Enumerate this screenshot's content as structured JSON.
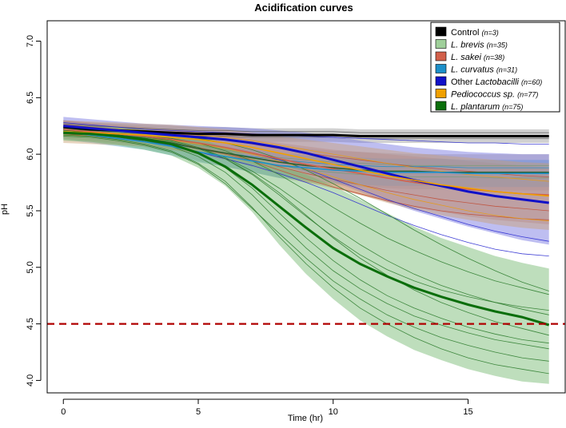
{
  "chart_data": {
    "type": "line",
    "title": "Acidification curves",
    "xlabel": "Time (hr)",
    "ylabel": "pH",
    "xlim": [
      -0.6,
      18.6
    ],
    "ylim": [
      3.89,
      7.18
    ],
    "x_ticks": [
      0,
      5,
      10,
      15
    ],
    "x_tick_labels": [
      "0",
      "5",
      "10",
      "15"
    ],
    "y_ticks": [
      4.0,
      4.5,
      5.0,
      5.5,
      6.0,
      6.5,
      7.0
    ],
    "y_tick_labels": [
      "4.0",
      "4.5",
      "5.0",
      "5.5",
      "6.0",
      "6.5",
      "7.0"
    ],
    "x": [
      0,
      1,
      2,
      3,
      4,
      5,
      6,
      7,
      8,
      9,
      10,
      11,
      12,
      13,
      14,
      15,
      16,
      17,
      18
    ],
    "threshold": {
      "y": 4.5,
      "color": "#b00000",
      "style": "dashed"
    },
    "legend_position": "top-right",
    "series": [
      {
        "name": "Control",
        "italic": false,
        "n_label": "(n=3)",
        "color": "#000000",
        "band_color": "#9a9a9a",
        "line_color": "#606060",
        "mean": [
          6.24,
          6.22,
          6.21,
          6.2,
          6.19,
          6.18,
          6.18,
          6.17,
          6.17,
          6.17,
          6.17,
          6.16,
          6.16,
          6.16,
          6.16,
          6.16,
          6.16,
          6.16,
          6.16
        ],
        "upper": [
          6.3,
          6.28,
          6.27,
          6.26,
          6.25,
          6.24,
          6.24,
          6.23,
          6.23,
          6.23,
          6.23,
          6.22,
          6.22,
          6.22,
          6.22,
          6.22,
          6.22,
          6.22,
          6.22
        ],
        "lower": [
          6.18,
          6.16,
          6.15,
          6.14,
          6.13,
          6.12,
          6.12,
          6.11,
          6.11,
          6.11,
          6.11,
          6.1,
          6.1,
          6.1,
          6.1,
          6.1,
          6.1,
          6.1,
          6.1
        ],
        "individual": [
          [
            6.27,
            6.25,
            6.24,
            6.23,
            6.22,
            6.21,
            6.21,
            6.2,
            6.2,
            6.2,
            6.2,
            6.19,
            6.19,
            6.19,
            6.19,
            6.19,
            6.19,
            6.19,
            6.19
          ],
          [
            6.22,
            6.2,
            6.19,
            6.18,
            6.17,
            6.16,
            6.16,
            6.15,
            6.15,
            6.15,
            6.15,
            6.14,
            6.14,
            6.14,
            6.14,
            6.14,
            6.14,
            6.14,
            6.14
          ]
        ]
      },
      {
        "name": "L. brevis",
        "italic": true,
        "n_label": "(n=35)",
        "color": "#9fcf9a",
        "band_color": "#b9a898",
        "line_color": "#7a9a74",
        "mean": [
          6.22,
          6.19,
          6.17,
          6.14,
          6.1,
          6.05,
          6.01,
          5.97,
          5.93,
          5.9,
          5.88,
          5.86,
          5.85,
          5.85,
          5.84,
          5.84,
          5.84,
          5.84,
          5.84
        ],
        "upper": [
          6.3,
          6.27,
          6.25,
          6.22,
          6.19,
          6.16,
          6.13,
          6.1,
          6.07,
          6.05,
          6.03,
          6.02,
          6.01,
          6.0,
          6.0,
          6.0,
          6.0,
          6.0,
          6.0
        ],
        "lower": [
          6.14,
          6.11,
          6.09,
          6.06,
          6.01,
          5.94,
          5.89,
          5.84,
          5.79,
          5.75,
          5.73,
          5.71,
          5.7,
          5.69,
          5.69,
          5.69,
          5.68,
          5.68,
          5.68
        ],
        "individual": [
          [
            6.24,
            6.21,
            6.19,
            6.16,
            6.12,
            6.08,
            6.04,
            6.0,
            5.97,
            5.95,
            5.93,
            5.92,
            5.91,
            5.9,
            5.9,
            5.9,
            5.9,
            5.9,
            5.9
          ],
          [
            6.2,
            6.17,
            6.15,
            6.12,
            6.08,
            6.02,
            5.98,
            5.94,
            5.9,
            5.86,
            5.84,
            5.82,
            5.81,
            5.8,
            5.8,
            5.8,
            5.79,
            5.79,
            5.79
          ]
        ]
      },
      {
        "name": "L. sakei",
        "italic": true,
        "n_label": "(n=38)",
        "color": "#d2604a",
        "band_color": "#d8896f",
        "line_color": "#c0503a",
        "mean": [
          6.22,
          6.2,
          6.18,
          6.16,
          6.13,
          6.1,
          6.06,
          6.01,
          5.96,
          5.91,
          5.87,
          5.83,
          5.79,
          5.75,
          5.72,
          5.69,
          5.67,
          5.65,
          5.64
        ],
        "upper": [
          6.3,
          6.28,
          6.26,
          6.24,
          6.22,
          6.2,
          6.17,
          6.13,
          6.1,
          6.07,
          6.04,
          6.02,
          6.0,
          5.98,
          5.96,
          5.94,
          5.92,
          5.9,
          5.88
        ],
        "lower": [
          6.14,
          6.12,
          6.1,
          6.08,
          6.04,
          6.0,
          5.95,
          5.89,
          5.82,
          5.75,
          5.7,
          5.64,
          5.58,
          5.53,
          5.49,
          5.45,
          5.42,
          5.4,
          5.38
        ],
        "individual": [
          [
            6.26,
            6.24,
            6.22,
            6.2,
            6.18,
            6.16,
            6.13,
            6.09,
            6.05,
            6.01,
            5.98,
            5.95,
            5.92,
            5.89,
            5.87,
            5.85,
            5.83,
            5.81,
            5.8
          ],
          [
            6.2,
            6.18,
            6.16,
            6.13,
            6.1,
            6.06,
            6.01,
            5.95,
            5.89,
            5.83,
            5.78,
            5.73,
            5.68,
            5.64,
            5.6,
            5.57,
            5.54,
            5.52,
            5.5
          ],
          [
            6.18,
            6.16,
            6.14,
            6.12,
            6.09,
            6.05,
            6.0,
            5.94,
            5.86,
            5.78,
            5.71,
            5.65,
            5.59,
            5.54,
            5.5,
            5.47,
            5.45,
            5.43,
            5.42
          ]
        ]
      },
      {
        "name": "L. curvatus",
        "italic": true,
        "n_label": "(n=31)",
        "color": "#1c8fc9",
        "band_color": "#5aa9cf",
        "line_color": "#1c8fc9",
        "mean": [
          6.2,
          6.17,
          6.14,
          6.11,
          6.07,
          6.02,
          5.98,
          5.94,
          5.9,
          5.88,
          5.86,
          5.85,
          5.84,
          5.84,
          5.84,
          5.83,
          5.83,
          5.83,
          5.83
        ],
        "upper": [
          6.27,
          6.24,
          6.21,
          6.18,
          6.15,
          6.11,
          6.07,
          6.04,
          6.01,
          5.99,
          5.98,
          5.97,
          5.96,
          5.96,
          5.96,
          5.95,
          5.95,
          5.95,
          5.95
        ],
        "lower": [
          6.13,
          6.1,
          6.07,
          6.04,
          5.99,
          5.93,
          5.89,
          5.84,
          5.79,
          5.77,
          5.74,
          5.73,
          5.72,
          5.72,
          5.72,
          5.71,
          5.71,
          5.71,
          5.71
        ],
        "individual": [
          [
            6.22,
            6.19,
            6.16,
            6.13,
            6.09,
            6.05,
            6.01,
            5.98,
            5.95,
            5.93,
            5.91,
            5.9,
            5.89,
            5.89,
            5.89,
            5.88,
            5.88,
            5.88,
            5.88
          ]
        ]
      },
      {
        "name": "Other Lactobacilli",
        "name_prefix": "Other ",
        "name_italic_part": "Lactobacilli",
        "italic": false,
        "n_label": "(n=60)",
        "color": "#1010c8",
        "band_color": "#6f6fe0",
        "line_color": "#2a2ad0",
        "mean": [
          6.25,
          6.23,
          6.21,
          6.19,
          6.17,
          6.15,
          6.13,
          6.1,
          6.06,
          6.01,
          5.95,
          5.89,
          5.83,
          5.77,
          5.72,
          5.67,
          5.63,
          5.6,
          5.57
        ],
        "upper": [
          6.33,
          6.31,
          6.29,
          6.27,
          6.26,
          6.25,
          6.24,
          6.23,
          6.21,
          6.19,
          6.16,
          6.12,
          6.09,
          6.06,
          6.04,
          6.02,
          6.01,
          6.0,
          6.0
        ],
        "lower": [
          6.17,
          6.15,
          6.13,
          6.11,
          6.08,
          6.05,
          6.02,
          5.97,
          5.91,
          5.84,
          5.76,
          5.67,
          5.58,
          5.5,
          5.43,
          5.36,
          5.3,
          5.24,
          5.2
        ],
        "individual": [
          [
            6.28,
            6.26,
            6.24,
            6.22,
            6.21,
            6.2,
            6.19,
            6.18,
            6.17,
            6.16,
            6.15,
            6.14,
            6.13,
            6.12,
            6.11,
            6.1,
            6.1,
            6.09,
            6.09
          ],
          [
            6.22,
            6.2,
            6.18,
            6.16,
            6.13,
            6.1,
            6.06,
            6.01,
            5.95,
            5.87,
            5.78,
            5.69,
            5.6,
            5.52,
            5.45,
            5.38,
            5.32,
            5.27,
            5.23
          ],
          [
            6.2,
            6.18,
            6.15,
            6.12,
            6.08,
            6.02,
            5.96,
            5.9,
            5.83,
            5.75,
            5.66,
            5.56,
            5.46,
            5.37,
            5.29,
            5.22,
            5.16,
            5.12,
            5.1
          ]
        ]
      },
      {
        "name": "Pediococcus sp.",
        "italic": true,
        "n_label": "(n=77)",
        "color": "#f0a000",
        "band_color": "#c9a070",
        "line_color": "#e89a10",
        "mean": [
          6.2,
          6.19,
          6.18,
          6.17,
          6.15,
          6.13,
          6.1,
          6.06,
          6.01,
          5.96,
          5.91,
          5.86,
          5.81,
          5.77,
          5.73,
          5.7,
          5.67,
          5.65,
          5.63
        ],
        "upper": [
          6.3,
          6.29,
          6.28,
          6.27,
          6.26,
          6.24,
          6.22,
          6.19,
          6.16,
          6.13,
          6.1,
          6.07,
          6.04,
          6.01,
          5.99,
          5.97,
          5.95,
          5.93,
          5.92
        ],
        "lower": [
          6.1,
          6.09,
          6.08,
          6.07,
          6.04,
          6.01,
          5.97,
          5.92,
          5.85,
          5.78,
          5.71,
          5.64,
          5.57,
          5.51,
          5.46,
          5.42,
          5.38,
          5.35,
          5.33
        ],
        "individual": [
          [
            6.24,
            6.23,
            6.22,
            6.21,
            6.19,
            6.17,
            6.15,
            6.12,
            6.08,
            6.04,
            6.0,
            5.96,
            5.92,
            5.88,
            5.85,
            5.82,
            5.8,
            5.78,
            5.76
          ],
          [
            6.17,
            6.16,
            6.15,
            6.14,
            6.12,
            6.09,
            6.05,
            6.0,
            5.94,
            5.87,
            5.8,
            5.73,
            5.66,
            5.6,
            5.55,
            5.5,
            5.46,
            5.43,
            5.41
          ]
        ]
      },
      {
        "name": "L. plantarum",
        "italic": true,
        "n_label": "(n=75)",
        "color": "#0a6e0a",
        "band_color": "#6fb56a",
        "line_color": "#2f7d2f",
        "mean": [
          6.19,
          6.18,
          6.16,
          6.13,
          6.09,
          6.01,
          5.89,
          5.73,
          5.54,
          5.35,
          5.17,
          5.03,
          4.92,
          4.82,
          4.74,
          4.67,
          4.61,
          4.56,
          4.49
        ],
        "upper": [
          6.26,
          6.25,
          6.24,
          6.22,
          6.19,
          6.14,
          6.06,
          5.97,
          5.9,
          5.82,
          5.72,
          5.6,
          5.48,
          5.36,
          5.26,
          5.18,
          5.1,
          5.04,
          4.99
        ],
        "lower": [
          6.12,
          6.11,
          6.08,
          6.04,
          5.99,
          5.88,
          5.72,
          5.49,
          5.2,
          4.94,
          4.72,
          4.53,
          4.39,
          4.27,
          4.18,
          4.1,
          4.04,
          3.99,
          3.97
        ],
        "individual": [
          [
            6.2,
            6.19,
            6.17,
            6.14,
            6.11,
            6.05,
            5.96,
            5.83,
            5.66,
            5.46,
            5.26,
            5.08,
            4.93,
            4.8,
            4.69,
            4.6,
            4.52,
            4.46,
            4.4
          ],
          [
            6.18,
            6.17,
            6.15,
            6.12,
            6.07,
            5.98,
            5.84,
            5.64,
            5.4,
            5.17,
            4.97,
            4.81,
            4.68,
            4.57,
            4.49,
            4.42,
            4.36,
            4.32,
            4.28
          ],
          [
            6.21,
            6.2,
            6.18,
            6.16,
            6.12,
            6.06,
            5.96,
            5.82,
            5.64,
            5.45,
            5.27,
            5.11,
            4.98,
            4.88,
            4.8,
            4.74,
            4.69,
            4.65,
            4.62
          ],
          [
            6.17,
            6.16,
            6.13,
            6.09,
            6.03,
            5.92,
            5.76,
            5.53,
            5.27,
            5.03,
            4.82,
            4.64,
            4.5,
            4.38,
            4.28,
            4.2,
            4.14,
            4.1,
            4.06
          ],
          [
            6.2,
            6.19,
            6.18,
            6.16,
            6.14,
            6.1,
            6.03,
            5.94,
            5.82,
            5.68,
            5.53,
            5.39,
            5.26,
            5.15,
            5.05,
            4.96,
            4.88,
            4.82,
            4.76
          ],
          [
            6.19,
            6.18,
            6.16,
            6.13,
            6.09,
            6.01,
            5.88,
            5.7,
            5.48,
            5.26,
            5.06,
            4.89,
            4.75,
            4.64,
            4.55,
            4.47,
            4.41,
            4.36,
            4.33
          ],
          [
            6.22,
            6.21,
            6.2,
            6.19,
            6.17,
            6.14,
            6.1,
            6.04,
            5.96,
            5.86,
            5.74,
            5.61,
            5.47,
            5.33,
            5.2,
            5.08,
            4.97,
            4.87,
            4.79
          ],
          [
            6.16,
            6.15,
            6.12,
            6.08,
            6.02,
            5.91,
            5.74,
            5.52,
            5.3,
            5.08,
            4.88,
            4.72,
            4.58,
            4.47,
            4.38,
            4.31,
            4.25,
            4.2,
            4.17
          ],
          [
            6.2,
            6.19,
            6.17,
            6.15,
            6.12,
            6.06,
            5.97,
            5.85,
            5.7,
            5.53,
            5.36,
            5.2,
            5.06,
            4.94,
            4.84,
            4.76,
            4.69,
            4.63,
            4.58
          ]
        ]
      }
    ]
  }
}
